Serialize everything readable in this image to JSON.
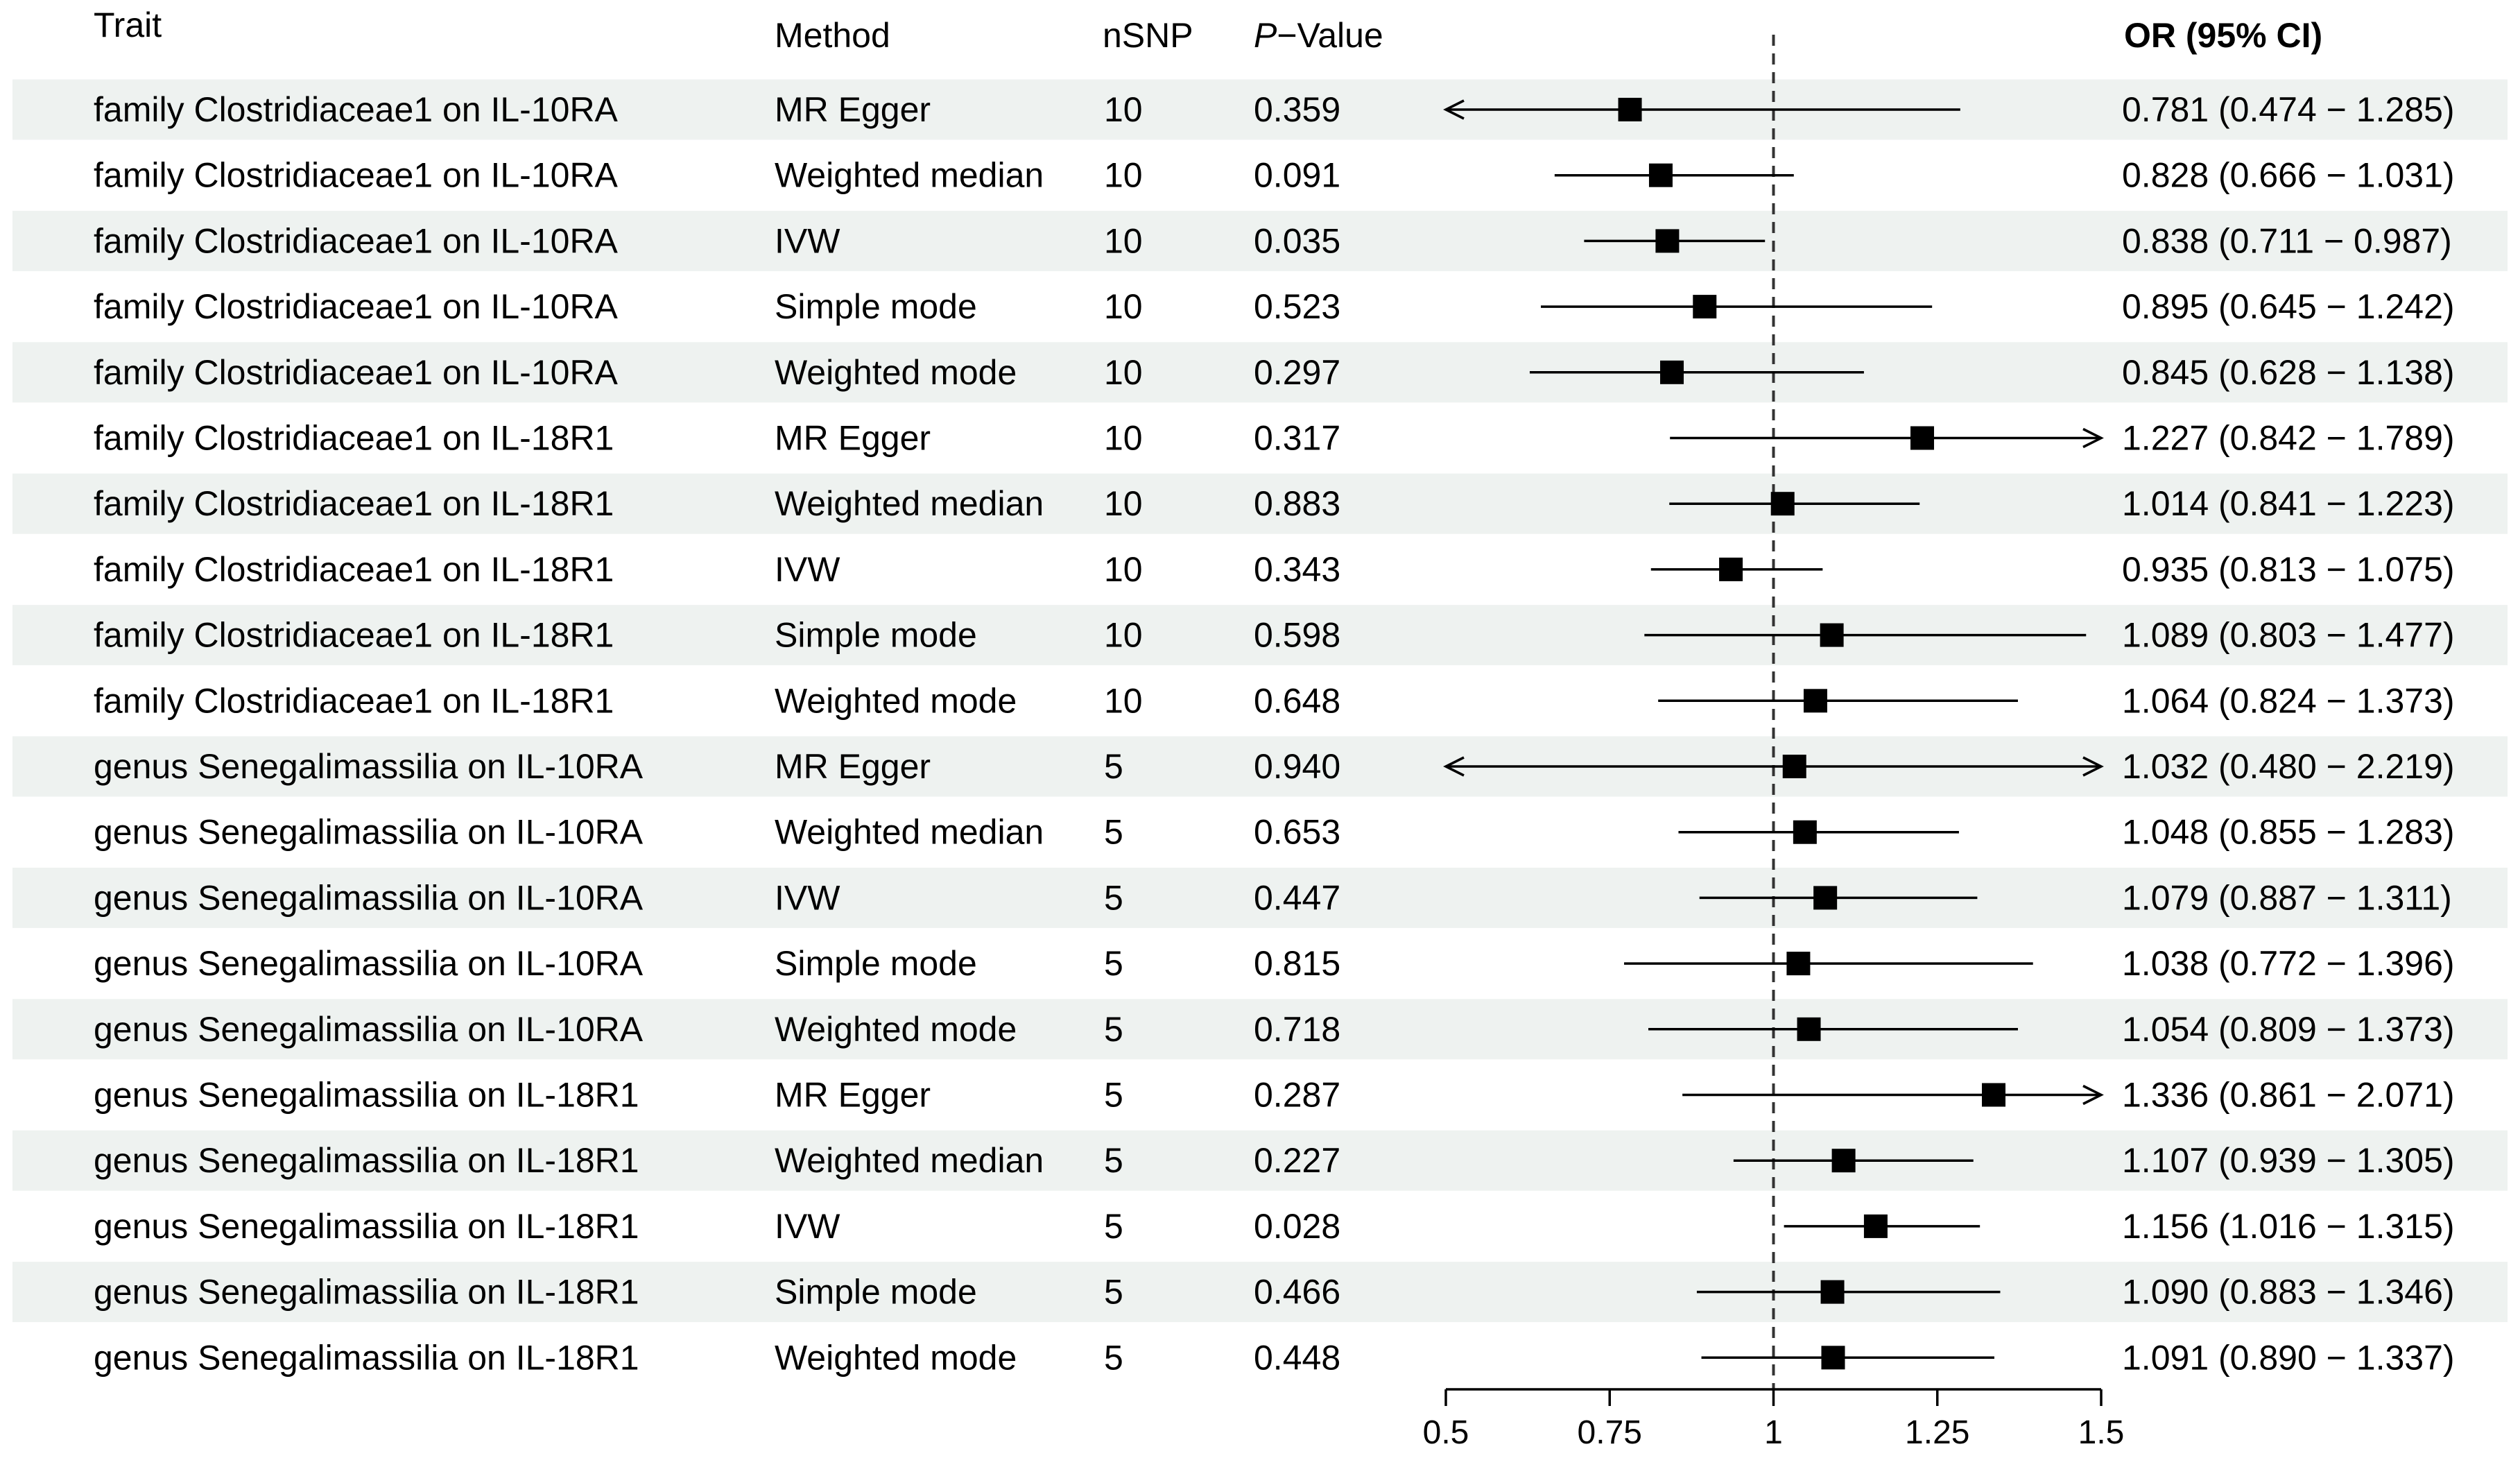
{
  "chart_data": {
    "type": "forest",
    "headers": {
      "trait": "Trait",
      "method": "Method",
      "nsnp": "nSNP",
      "pvalue_italic": "P",
      "pvalue_rest": "−Value",
      "or_ci": "OR (95% CI)"
    },
    "xaxis": {
      "ticks": [
        0.5,
        0.75,
        1,
        1.25,
        1.5
      ],
      "tick_labels": [
        "0.5",
        "0.75",
        "1",
        "1.25",
        "1.5"
      ],
      "xlim": [
        0.5,
        1.5
      ],
      "reference_line": 1
    },
    "rows": [
      {
        "trait": "family Clostridiaceae1 on IL-10RA",
        "method": "MR Egger",
        "nsnp": "10",
        "pvalue": "0.359",
        "or": 0.781,
        "lo": 0.474,
        "hi": 1.285,
        "or_ci": "0.781 (0.474 − 1.285)"
      },
      {
        "trait": "family Clostridiaceae1 on IL-10RA",
        "method": "Weighted median",
        "nsnp": "10",
        "pvalue": "0.091",
        "or": 0.828,
        "lo": 0.666,
        "hi": 1.031,
        "or_ci": "0.828 (0.666 − 1.031)"
      },
      {
        "trait": "family Clostridiaceae1 on IL-10RA",
        "method": "IVW",
        "nsnp": "10",
        "pvalue": "0.035",
        "or": 0.838,
        "lo": 0.711,
        "hi": 0.987,
        "or_ci": "0.838 (0.711 − 0.987)"
      },
      {
        "trait": "family Clostridiaceae1 on IL-10RA",
        "method": "Simple mode",
        "nsnp": "10",
        "pvalue": "0.523",
        "or": 0.895,
        "lo": 0.645,
        "hi": 1.242,
        "or_ci": "0.895 (0.645 − 1.242)"
      },
      {
        "trait": "family Clostridiaceae1 on IL-10RA",
        "method": "Weighted mode",
        "nsnp": "10",
        "pvalue": "0.297",
        "or": 0.845,
        "lo": 0.628,
        "hi": 1.138,
        "or_ci": "0.845 (0.628 − 1.138)"
      },
      {
        "trait": "family Clostridiaceae1 on IL-18R1",
        "method": "MR Egger",
        "nsnp": "10",
        "pvalue": "0.317",
        "or": 1.227,
        "lo": 0.842,
        "hi": 1.789,
        "or_ci": "1.227 (0.842 − 1.789)"
      },
      {
        "trait": "family Clostridiaceae1 on IL-18R1",
        "method": "Weighted median",
        "nsnp": "10",
        "pvalue": "0.883",
        "or": 1.014,
        "lo": 0.841,
        "hi": 1.223,
        "or_ci": "1.014 (0.841 − 1.223)"
      },
      {
        "trait": "family Clostridiaceae1 on IL-18R1",
        "method": "IVW",
        "nsnp": "10",
        "pvalue": "0.343",
        "or": 0.935,
        "lo": 0.813,
        "hi": 1.075,
        "or_ci": "0.935 (0.813 − 1.075)"
      },
      {
        "trait": "family Clostridiaceae1 on IL-18R1",
        "method": "Simple mode",
        "nsnp": "10",
        "pvalue": "0.598",
        "or": 1.089,
        "lo": 0.803,
        "hi": 1.477,
        "or_ci": "1.089 (0.803 − 1.477)"
      },
      {
        "trait": "family Clostridiaceae1 on IL-18R1",
        "method": "Weighted mode",
        "nsnp": "10",
        "pvalue": "0.648",
        "or": 1.064,
        "lo": 0.824,
        "hi": 1.373,
        "or_ci": "1.064 (0.824 − 1.373)"
      },
      {
        "trait": "genus Senegalimassilia on IL-10RA",
        "method": "MR Egger",
        "nsnp": "5",
        "pvalue": "0.940",
        "or": 1.032,
        "lo": 0.48,
        "hi": 2.219,
        "or_ci": "1.032 (0.480 − 2.219)"
      },
      {
        "trait": "genus Senegalimassilia on IL-10RA",
        "method": "Weighted median",
        "nsnp": "5",
        "pvalue": "0.653",
        "or": 1.048,
        "lo": 0.855,
        "hi": 1.283,
        "or_ci": "1.048 (0.855 − 1.283)"
      },
      {
        "trait": "genus Senegalimassilia on IL-10RA",
        "method": "IVW",
        "nsnp": "5",
        "pvalue": "0.447",
        "or": 1.079,
        "lo": 0.887,
        "hi": 1.311,
        "or_ci": "1.079 (0.887 − 1.311)"
      },
      {
        "trait": "genus Senegalimassilia on IL-10RA",
        "method": "Simple mode",
        "nsnp": "5",
        "pvalue": "0.815",
        "or": 1.038,
        "lo": 0.772,
        "hi": 1.396,
        "or_ci": "1.038 (0.772 − 1.396)"
      },
      {
        "trait": "genus Senegalimassilia on IL-10RA",
        "method": "Weighted mode",
        "nsnp": "5",
        "pvalue": "0.718",
        "or": 1.054,
        "lo": 0.809,
        "hi": 1.373,
        "or_ci": "1.054 (0.809 − 1.373)"
      },
      {
        "trait": "genus Senegalimassilia on IL-18R1",
        "method": "MR Egger",
        "nsnp": "5",
        "pvalue": "0.287",
        "or": 1.336,
        "lo": 0.861,
        "hi": 2.071,
        "or_ci": "1.336 (0.861 − 2.071)"
      },
      {
        "trait": "genus Senegalimassilia on IL-18R1",
        "method": "Weighted median",
        "nsnp": "5",
        "pvalue": "0.227",
        "or": 1.107,
        "lo": 0.939,
        "hi": 1.305,
        "or_ci": "1.107 (0.939 − 1.305)"
      },
      {
        "trait": "genus Senegalimassilia on IL-18R1",
        "method": "IVW",
        "nsnp": "5",
        "pvalue": "0.028",
        "or": 1.156,
        "lo": 1.016,
        "hi": 1.315,
        "or_ci": "1.156 (1.016 − 1.315)"
      },
      {
        "trait": "genus Senegalimassilia on IL-18R1",
        "method": "Simple mode",
        "nsnp": "5",
        "pvalue": "0.466",
        "or": 1.09,
        "lo": 0.883,
        "hi": 1.346,
        "or_ci": "1.090 (0.883 − 1.346)"
      },
      {
        "trait": "genus Senegalimassilia on IL-18R1",
        "method": "Weighted mode",
        "nsnp": "5",
        "pvalue": "0.448",
        "or": 1.091,
        "lo": 0.89,
        "hi": 1.337,
        "or_ci": "1.091 (0.890 − 1.337)"
      }
    ],
    "colors": {
      "band": "#eef2f0",
      "ink": "#000000"
    }
  }
}
